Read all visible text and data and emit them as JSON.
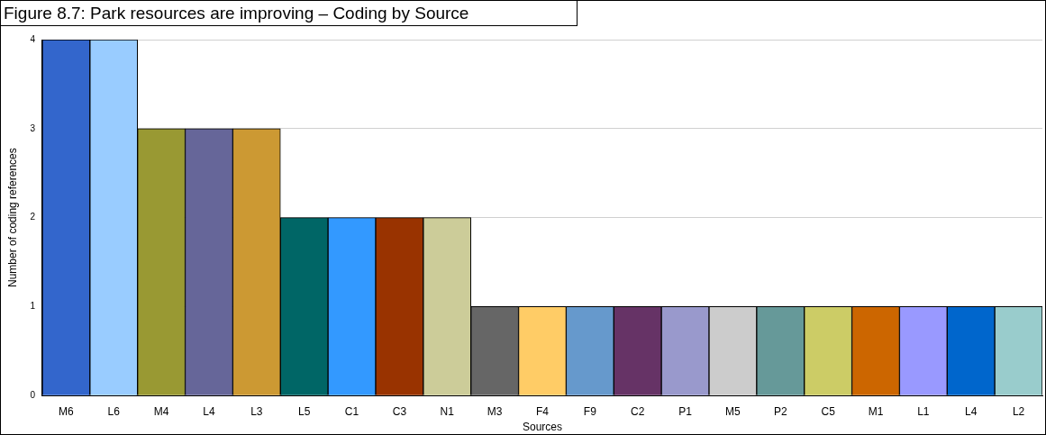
{
  "chart_data": {
    "type": "bar",
    "title": "Figure 8.7: Park resources are improving – Coding by Source",
    "xlabel": "Sources",
    "ylabel": "Number of coding references",
    "categories": [
      "M6",
      "L6",
      "M4",
      "L4",
      "L3",
      "L5",
      "C1",
      "C3",
      "N1",
      "M3",
      "F4",
      "F9",
      "C2",
      "P1",
      "M5",
      "P2",
      "C5",
      "M1",
      "L1",
      "L4",
      "L2"
    ],
    "values": [
      4,
      4,
      3,
      3,
      3,
      2,
      2,
      2,
      2,
      1,
      1,
      1,
      1,
      1,
      1,
      1,
      1,
      1,
      1,
      1,
      1
    ],
    "colors": [
      "#3366cc",
      "#99ccff",
      "#999933",
      "#666699",
      "#cc9933",
      "#006666",
      "#3399ff",
      "#993300",
      "#cccc99",
      "#666666",
      "#ffcc66",
      "#6699cc",
      "#663366",
      "#9999cc",
      "#cccccc",
      "#669999",
      "#cccc66",
      "#cc6600",
      "#9999ff",
      "#0066cc",
      "#99cccc"
    ],
    "ylim": [
      0,
      4
    ],
    "yticks": [
      0,
      1,
      2,
      3,
      4
    ],
    "grid": "y",
    "legend": false
  }
}
